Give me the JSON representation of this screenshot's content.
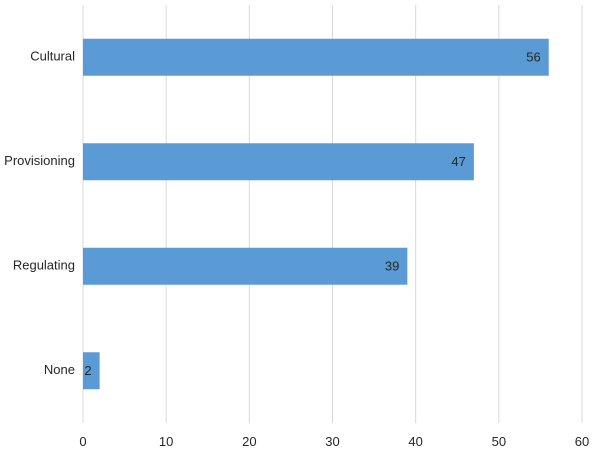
{
  "chart_data": {
    "type": "bar",
    "orientation": "horizontal",
    "categories": [
      "Cultural",
      "Provisioning",
      "Regulating",
      "None"
    ],
    "values": [
      56,
      47,
      39,
      2
    ],
    "data_labels": [
      "56",
      "47",
      "39",
      "2"
    ],
    "xlim": [
      0,
      60
    ],
    "x_ticks": [
      0,
      10,
      20,
      30,
      40,
      50,
      60
    ],
    "x_tick_labels": [
      "0",
      "10",
      "20",
      "30",
      "40",
      "50",
      "60"
    ],
    "grid": "vertical",
    "legend": "none",
    "colors": {
      "bar": "#5b9bd5",
      "grid": "#d9d9d9",
      "text": "#262626"
    }
  }
}
